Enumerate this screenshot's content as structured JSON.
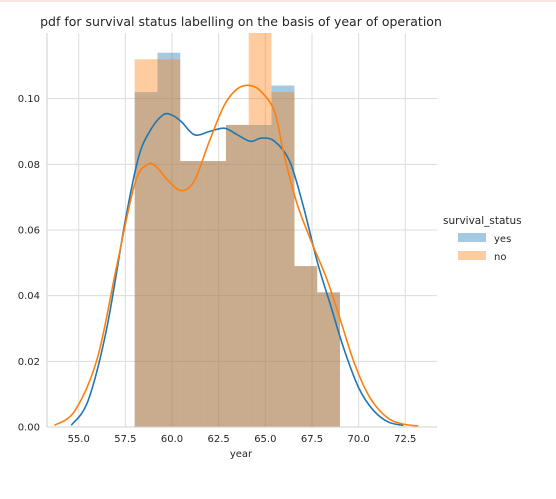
{
  "chart_data": {
    "type": "histogram-kde",
    "title": "pdf for survival status labelling on the basis of year of operation",
    "xlabel": "year",
    "ylabel": "",
    "xlim": [
      53.3,
      74.2
    ],
    "ylim": [
      0,
      0.12
    ],
    "x_ticks": [
      55.0,
      57.5,
      60.0,
      62.5,
      65.0,
      67.5,
      70.0,
      72.5
    ],
    "x_tick_labels": [
      "55.0",
      "57.5",
      "60.0",
      "62.5",
      "65.0",
      "67.5",
      "70.0",
      "72.5"
    ],
    "y_ticks": [
      0.0,
      0.02,
      0.04,
      0.06,
      0.08,
      0.1
    ],
    "y_tick_labels": [
      "0.00",
      "0.02",
      "0.04",
      "0.06",
      "0.08",
      "0.10"
    ],
    "grid": true,
    "legend": {
      "title": "survival_status",
      "placement": "right",
      "entries": [
        "yes",
        "no"
      ]
    },
    "series": [
      {
        "name": "yes",
        "color": "#1f77b4",
        "bin_edges": [
          58.0,
          59.22,
          60.44,
          61.67,
          62.89,
          64.11,
          65.33,
          66.56,
          67.78,
          69.0
        ],
        "densities": [
          0.102,
          0.114,
          0.081,
          0.081,
          0.092,
          0.092,
          0.104,
          0.049,
          0.041
        ],
        "kde_x": [
          54.6,
          55.5,
          56.5,
          57.5,
          58.2,
          58.8,
          59.5,
          60.0,
          60.5,
          61.2,
          62.0,
          62.8,
          63.5,
          64.2,
          64.8,
          65.5,
          66.3,
          67.0,
          67.8,
          68.5,
          69.2,
          70.0,
          70.8,
          71.6,
          72.4
        ],
        "kde_y": [
          0.0005,
          0.008,
          0.03,
          0.063,
          0.082,
          0.09,
          0.095,
          0.095,
          0.093,
          0.089,
          0.09,
          0.091,
          0.089,
          0.087,
          0.088,
          0.087,
          0.081,
          0.068,
          0.05,
          0.037,
          0.024,
          0.012,
          0.005,
          0.0015,
          0.0005
        ]
      },
      {
        "name": "no",
        "color": "#ff7f0e",
        "bin_edges": [
          58.0,
          59.22,
          60.44,
          61.67,
          62.89,
          64.11,
          65.33,
          66.56,
          67.78,
          69.0
        ],
        "densities": [
          0.112,
          0.112,
          0.081,
          0.081,
          0.092,
          0.122,
          0.102,
          0.049,
          0.041
        ],
        "kde_x": [
          53.7,
          54.8,
          56.0,
          57.0,
          58.0,
          58.7,
          59.2,
          59.8,
          60.5,
          61.2,
          62.0,
          62.8,
          63.5,
          64.2,
          64.8,
          65.5,
          66.0,
          66.7,
          67.5,
          68.3,
          69.0,
          69.8,
          70.6,
          71.5,
          72.3,
          73.2
        ],
        "kde_y": [
          0.0005,
          0.005,
          0.021,
          0.048,
          0.074,
          0.08,
          0.079,
          0.075,
          0.072,
          0.075,
          0.087,
          0.098,
          0.103,
          0.104,
          0.102,
          0.096,
          0.083,
          0.068,
          0.056,
          0.045,
          0.033,
          0.019,
          0.009,
          0.003,
          0.001,
          0.0003
        ]
      }
    ]
  }
}
